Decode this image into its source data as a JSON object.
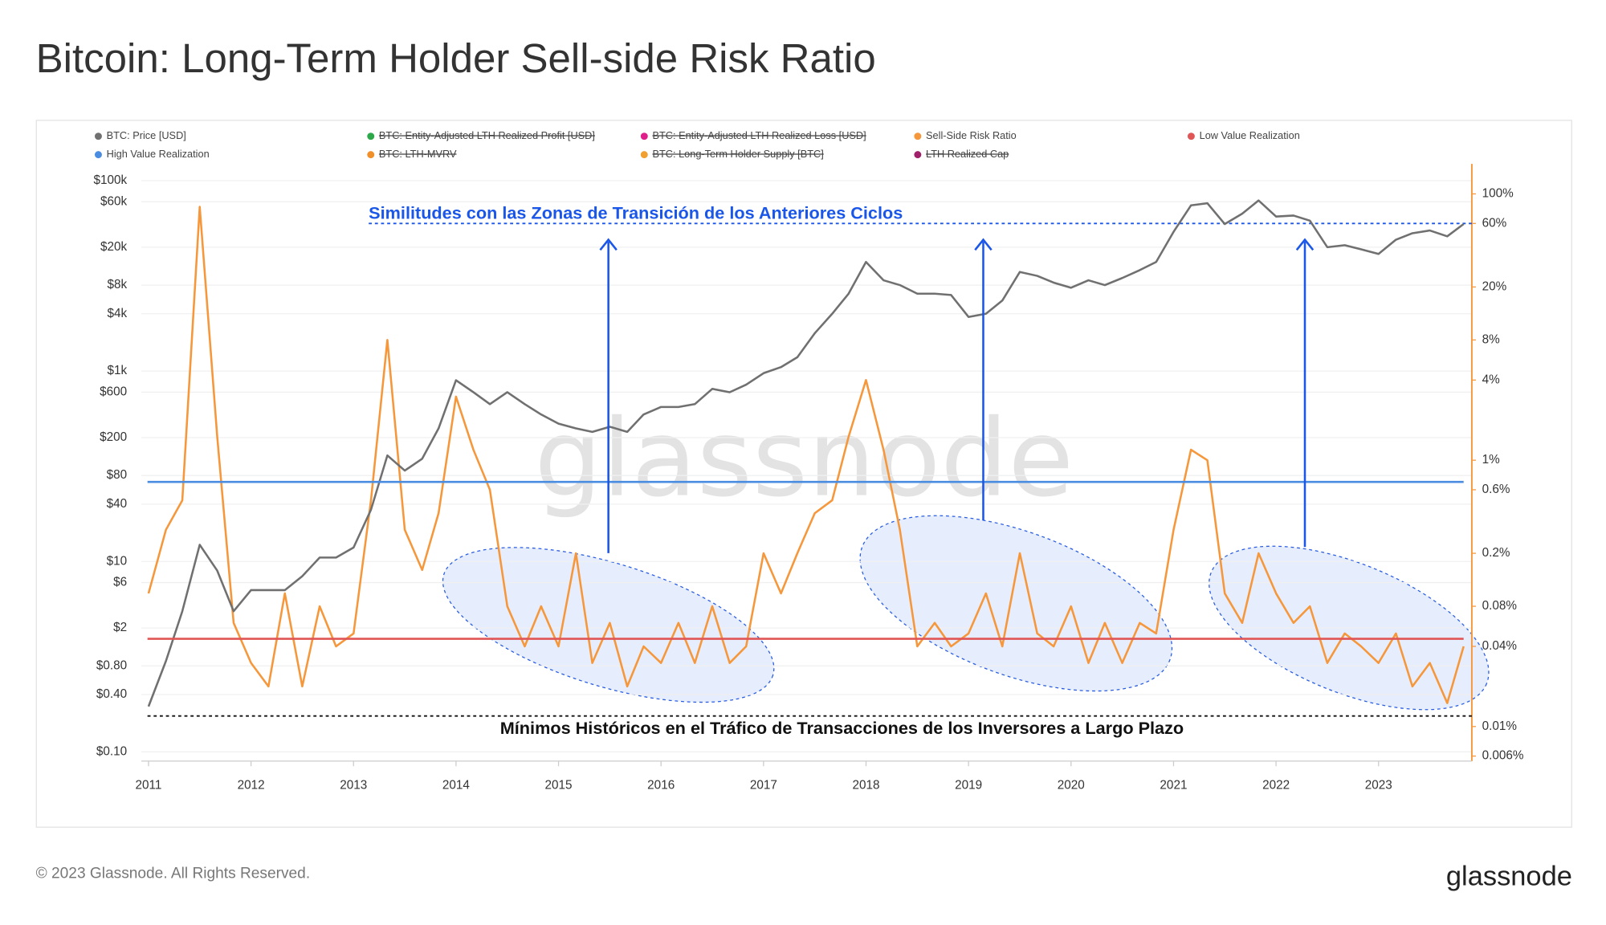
{
  "chart_data": {
    "type": "line",
    "title": "Bitcoin: Long-Term Holder Sell-side Risk Ratio",
    "x": [
      2011.0,
      2011.17,
      2011.33,
      2011.5,
      2011.67,
      2011.83,
      2012.0,
      2012.17,
      2012.33,
      2012.5,
      2012.67,
      2012.83,
      2013.0,
      2013.17,
      2013.33,
      2013.5,
      2013.67,
      2013.83,
      2014.0,
      2014.17,
      2014.33,
      2014.5,
      2014.67,
      2014.83,
      2015.0,
      2015.17,
      2015.33,
      2015.5,
      2015.67,
      2015.83,
      2016.0,
      2016.17,
      2016.33,
      2016.5,
      2016.67,
      2016.83,
      2017.0,
      2017.17,
      2017.33,
      2017.5,
      2017.67,
      2017.83,
      2018.0,
      2018.17,
      2018.33,
      2018.5,
      2018.67,
      2018.83,
      2019.0,
      2019.17,
      2019.33,
      2019.5,
      2019.67,
      2019.83,
      2020.0,
      2020.17,
      2020.33,
      2020.5,
      2020.67,
      2020.83,
      2021.0,
      2021.17,
      2021.33,
      2021.5,
      2021.67,
      2021.83,
      2022.0,
      2022.17,
      2022.33,
      2022.5,
      2022.67,
      2022.83,
      2023.0,
      2023.17,
      2023.33,
      2023.5,
      2023.67,
      2023.83
    ],
    "xlim": [
      2010.93,
      2023.91
    ],
    "xticks": [
      2011,
      2012,
      2013,
      2014,
      2015,
      2016,
      2017,
      2018,
      2019,
      2020,
      2021,
      2022,
      2023
    ],
    "log_scale": true,
    "grid": true,
    "ylim": [
      0.08,
      150000
    ],
    "yticks": [
      {
        "value": 100000,
        "label": "$100k"
      },
      {
        "value": 60000,
        "label": "$60k"
      },
      {
        "value": 20000,
        "label": "$20k"
      },
      {
        "value": 8000,
        "label": "$8k"
      },
      {
        "value": 4000,
        "label": "$4k"
      },
      {
        "value": 1000,
        "label": "$1k"
      },
      {
        "value": 600,
        "label": "$600"
      },
      {
        "value": 200,
        "label": "$200"
      },
      {
        "value": 80,
        "label": "$80"
      },
      {
        "value": 40,
        "label": "$40"
      },
      {
        "value": 10,
        "label": "$10"
      },
      {
        "value": 6,
        "label": "$6"
      },
      {
        "value": 2,
        "label": "$2"
      },
      {
        "value": 0.8,
        "label": "$0.80"
      },
      {
        "value": 0.4,
        "label": "$0.40"
      },
      {
        "value": 0.1,
        "label": "$0.10"
      }
    ],
    "y2lim": [
      0.0055,
      168
    ],
    "y2ticks": [
      {
        "value": 100,
        "label": "100%"
      },
      {
        "value": 60,
        "label": "60%"
      },
      {
        "value": 20,
        "label": "20%"
      },
      {
        "value": 8,
        "label": "8%"
      },
      {
        "value": 4,
        "label": "4%"
      },
      {
        "value": 1,
        "label": "1%"
      },
      {
        "value": 0.6,
        "label": "0.6%"
      },
      {
        "value": 0.2,
        "label": "0.2%"
      },
      {
        "value": 0.08,
        "label": "0.08%"
      },
      {
        "value": 0.04,
        "label": "0.04%"
      },
      {
        "value": 0.01,
        "label": "0.01%"
      },
      {
        "value": 0.006,
        "label": "0.006%"
      }
    ],
    "series": [
      {
        "name": "BTC: Price [USD]",
        "color": "#707070",
        "axis": "y",
        "values": [
          0.3,
          0.9,
          3,
          15,
          8,
          3,
          5,
          5,
          5,
          7,
          11,
          11,
          14,
          35,
          130,
          90,
          120,
          250,
          800,
          600,
          450,
          600,
          450,
          350,
          280,
          250,
          230,
          260,
          230,
          350,
          420,
          420,
          450,
          650,
          600,
          720,
          950,
          1100,
          1400,
          2500,
          4000,
          6500,
          14000,
          9000,
          8000,
          6500,
          6500,
          6300,
          3700,
          4000,
          5500,
          11000,
          10000,
          8500,
          7500,
          9000,
          8000,
          9500,
          11500,
          14000,
          29000,
          55000,
          58000,
          35000,
          45000,
          62000,
          42000,
          43000,
          38000,
          20000,
          21000,
          19000,
          17000,
          24000,
          28000,
          30000,
          26000,
          35000
        ]
      },
      {
        "name": "BTC: Entity-Adjusted LTH Realized Profit [USD]",
        "color": "#2ca84a",
        "visible": false
      },
      {
        "name": "BTC: Entity-Adjusted LTH Realized Loss [USD]",
        "color": "#e0208a",
        "visible": false
      },
      {
        "name": "Sell-Side Risk Ratio",
        "color": "#f5973a",
        "axis": "y2",
        "values": [
          0.1,
          0.3,
          0.5,
          80,
          1.5,
          0.06,
          0.03,
          0.02,
          0.1,
          0.02,
          0.08,
          0.04,
          0.05,
          0.5,
          8,
          0.3,
          0.15,
          0.4,
          3,
          1.2,
          0.6,
          0.08,
          0.04,
          0.08,
          0.04,
          0.2,
          0.03,
          0.06,
          0.02,
          0.04,
          0.03,
          0.06,
          0.03,
          0.08,
          0.03,
          0.04,
          0.2,
          0.1,
          0.2,
          0.4,
          0.5,
          1.5,
          4,
          1.2,
          0.3,
          0.04,
          0.06,
          0.04,
          0.05,
          0.1,
          0.04,
          0.2,
          0.05,
          0.04,
          0.08,
          0.03,
          0.06,
          0.03,
          0.06,
          0.05,
          0.3,
          1.2,
          1.0,
          0.1,
          0.06,
          0.2,
          0.1,
          0.06,
          0.08,
          0.03,
          0.05,
          0.04,
          0.03,
          0.05,
          0.02,
          0.03,
          0.015,
          0.04
        ]
      },
      {
        "name": "Low Value Realization",
        "color": "#e05555",
        "axis": "y2",
        "level": 0.0456
      },
      {
        "name": "High Value Realization",
        "color": "#4a8ce0",
        "axis": "y2",
        "level": 0.687
      },
      {
        "name": "BTC: LTH-MVRV",
        "color": "#f0902a",
        "visible": false
      },
      {
        "name": "BTC: Long-Term Holder Supply [BTC]",
        "color": "#f0a030",
        "visible": false
      },
      {
        "name": "LTH Realized Cap",
        "color": "#a0206a",
        "visible": false
      }
    ],
    "annotations": [
      {
        "text": "Similitudes con las Zonas de Transición de los Anteriores Ciclos",
        "level": 60,
        "axis": "y2",
        "color": "#1a56e8"
      },
      {
        "text": "Mínimos Históricos en el Tráfico de Transacciones de los Inversores a Largo Plazo",
        "level": 0.012,
        "axis": "y2",
        "color": "#111111"
      }
    ],
    "watermark": "glassnode",
    "footer": "© 2023 Glassnode. All Rights Reserved.",
    "brand": "glassnode"
  }
}
